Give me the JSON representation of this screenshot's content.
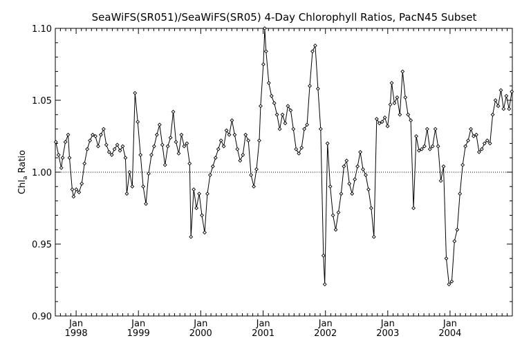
{
  "chart_data": {
    "type": "line",
    "title": "SeaWiFS(SR051)/SeaWiFS(SR05) 4-Day Chlorophyll Ratios, PacN45 Subset",
    "ylabel_main": "Chl",
    "ylabel_sub": "a",
    "ylabel_rest": " Ratio",
    "ylim": [
      0.9,
      1.1
    ],
    "yticks": [
      "0.90",
      "0.95",
      "1.00",
      "1.05",
      "1.10"
    ],
    "ytick_values": [
      0.9,
      0.95,
      1.0,
      1.05,
      1.1
    ],
    "reference_line": 1.0,
    "x_range": [
      "1997-09-01",
      "2004-12-31"
    ],
    "xticks": [
      {
        "month": "Jan",
        "year": "1998",
        "date": "1998-01-01"
      },
      {
        "month": "Jan",
        "year": "1999",
        "date": "1999-01-01"
      },
      {
        "month": "Jan",
        "year": "2000",
        "date": "2000-01-01"
      },
      {
        "month": "Jan",
        "year": "2001",
        "date": "2001-01-01"
      },
      {
        "month": "Jan",
        "year": "2002",
        "date": "2002-01-01"
      },
      {
        "month": "Jan",
        "year": "2003",
        "date": "2003-01-01"
      },
      {
        "month": "Jan",
        "year": "2004",
        "date": "2004-01-01"
      }
    ],
    "grid": false,
    "marker": "diamond",
    "series": [
      {
        "points": [
          [
            "1997-09-04",
            1.021
          ],
          [
            "1997-09-20",
            1.012
          ],
          [
            "1997-10-06",
            1.003
          ],
          [
            "1997-10-14",
            1.01
          ],
          [
            "1997-10-30",
            1.021
          ],
          [
            "1997-11-15",
            1.026
          ],
          [
            "1997-11-23",
            1.01
          ],
          [
            "1997-12-09",
            0.988
          ],
          [
            "1997-12-17",
            0.983
          ],
          [
            "1998-01-02",
            0.988
          ],
          [
            "1998-01-18",
            0.986
          ],
          [
            "1998-02-03",
            0.992
          ],
          [
            "1998-02-19",
            1.006
          ],
          [
            "1998-03-07",
            1.016
          ],
          [
            "1998-03-23",
            1.022
          ],
          [
            "1998-04-08",
            1.026
          ],
          [
            "1998-04-24",
            1.025
          ],
          [
            "1998-05-10",
            1.018
          ],
          [
            "1998-05-26",
            1.026
          ],
          [
            "1998-06-11",
            1.03
          ],
          [
            "1998-06-27",
            1.019
          ],
          [
            "1998-07-13",
            1.014
          ],
          [
            "1998-07-29",
            1.012
          ],
          [
            "1998-08-14",
            1.016
          ],
          [
            "1998-08-30",
            1.019
          ],
          [
            "1998-09-15",
            1.015
          ],
          [
            "1998-10-01",
            1.018
          ],
          [
            "1998-10-17",
            1.01
          ],
          [
            "1998-10-25",
            0.985
          ],
          [
            "1998-11-10",
            1.0
          ],
          [
            "1998-11-26",
            0.99
          ],
          [
            "1998-12-12",
            1.055
          ],
          [
            "1998-12-28",
            1.035
          ],
          [
            "1999-01-13",
            1.012
          ],
          [
            "1999-01-29",
            0.99
          ],
          [
            "1999-02-14",
            0.978
          ],
          [
            "1999-03-02",
            0.999
          ],
          [
            "1999-03-18",
            1.012
          ],
          [
            "1999-04-03",
            1.018
          ],
          [
            "1999-04-19",
            1.026
          ],
          [
            "1999-05-05",
            1.033
          ],
          [
            "1999-05-21",
            1.019
          ],
          [
            "1999-06-06",
            1.005
          ],
          [
            "1999-06-22",
            1.018
          ],
          [
            "1999-07-08",
            1.024
          ],
          [
            "1999-07-24",
            1.042
          ],
          [
            "1999-08-09",
            1.021
          ],
          [
            "1999-08-25",
            1.013
          ],
          [
            "1999-09-10",
            1.026
          ],
          [
            "1999-09-26",
            1.018
          ],
          [
            "1999-10-12",
            1.02
          ],
          [
            "1999-10-28",
            1.006
          ],
          [
            "1999-11-05",
            0.955
          ],
          [
            "1999-11-21",
            0.988
          ],
          [
            "1999-12-07",
            0.975
          ],
          [
            "1999-12-23",
            0.985
          ],
          [
            "2000-01-08",
            0.97
          ],
          [
            "2000-01-24",
            0.958
          ],
          [
            "2000-02-09",
            0.985
          ],
          [
            "2000-02-25",
            0.998
          ],
          [
            "2000-03-12",
            1.004
          ],
          [
            "2000-03-28",
            1.01
          ],
          [
            "2000-04-13",
            1.016
          ],
          [
            "2000-04-29",
            1.022
          ],
          [
            "2000-05-15",
            1.018
          ],
          [
            "2000-05-31",
            1.029
          ],
          [
            "2000-06-16",
            1.026
          ],
          [
            "2000-07-02",
            1.036
          ],
          [
            "2000-07-18",
            1.026
          ],
          [
            "2000-08-03",
            1.016
          ],
          [
            "2000-08-19",
            1.008
          ],
          [
            "2000-09-04",
            1.012
          ],
          [
            "2000-09-20",
            1.026
          ],
          [
            "2000-10-06",
            1.022
          ],
          [
            "2000-10-22",
            0.998
          ],
          [
            "2000-11-07",
            0.99
          ],
          [
            "2000-11-23",
            1.002
          ],
          [
            "2000-12-09",
            1.022
          ],
          [
            "2000-12-17",
            1.046
          ],
          [
            "2001-01-02",
            1.075
          ],
          [
            "2001-01-10",
            1.102
          ],
          [
            "2001-01-18",
            1.084
          ],
          [
            "2001-02-03",
            1.062
          ],
          [
            "2001-02-19",
            1.053
          ],
          [
            "2001-03-07",
            1.048
          ],
          [
            "2001-03-23",
            1.04
          ],
          [
            "2001-04-08",
            1.03
          ],
          [
            "2001-04-24",
            1.04
          ],
          [
            "2001-05-10",
            1.034
          ],
          [
            "2001-05-26",
            1.046
          ],
          [
            "2001-06-11",
            1.043
          ],
          [
            "2001-06-27",
            1.03
          ],
          [
            "2001-07-13",
            1.016
          ],
          [
            "2001-07-29",
            1.013
          ],
          [
            "2001-08-14",
            1.017
          ],
          [
            "2001-08-30",
            1.03
          ],
          [
            "2001-09-15",
            1.033
          ],
          [
            "2001-10-01",
            1.06
          ],
          [
            "2001-10-17",
            1.084
          ],
          [
            "2001-11-02",
            1.088
          ],
          [
            "2001-11-18",
            1.058
          ],
          [
            "2001-12-04",
            1.03
          ],
          [
            "2001-12-20",
            0.942
          ],
          [
            "2001-12-28",
            0.922
          ],
          [
            "2002-01-13",
            1.02
          ],
          [
            "2002-01-29",
            0.99
          ],
          [
            "2002-02-14",
            0.97
          ],
          [
            "2002-03-02",
            0.96
          ],
          [
            "2002-03-18",
            0.972
          ],
          [
            "2002-04-03",
            0.985
          ],
          [
            "2002-04-19",
            1.004
          ],
          [
            "2002-05-05",
            1.008
          ],
          [
            "2002-05-21",
            0.992
          ],
          [
            "2002-06-06",
            0.985
          ],
          [
            "2002-06-22",
            0.995
          ],
          [
            "2002-07-08",
            1.004
          ],
          [
            "2002-07-24",
            1.014
          ],
          [
            "2002-08-09",
            1.002
          ],
          [
            "2002-08-25",
            0.998
          ],
          [
            "2002-09-10",
            0.988
          ],
          [
            "2002-09-26",
            0.975
          ],
          [
            "2002-10-12",
            0.955
          ],
          [
            "2002-10-28",
            1.037
          ],
          [
            "2002-11-13",
            1.034
          ],
          [
            "2002-11-29",
            1.035
          ],
          [
            "2002-12-15",
            1.038
          ],
          [
            "2002-12-31",
            1.032
          ],
          [
            "2003-01-16",
            1.047
          ],
          [
            "2003-01-24",
            1.062
          ],
          [
            "2003-02-09",
            1.048
          ],
          [
            "2003-02-25",
            1.052
          ],
          [
            "2003-03-13",
            1.04
          ],
          [
            "2003-03-29",
            1.07
          ],
          [
            "2003-04-14",
            1.052
          ],
          [
            "2003-04-30",
            1.04
          ],
          [
            "2003-05-16",
            1.036
          ],
          [
            "2003-06-01",
            0.975
          ],
          [
            "2003-06-17",
            1.025
          ],
          [
            "2003-07-03",
            1.015
          ],
          [
            "2003-07-19",
            1.016
          ],
          [
            "2003-08-04",
            1.018
          ],
          [
            "2003-08-20",
            1.03
          ],
          [
            "2003-09-05",
            1.016
          ],
          [
            "2003-09-21",
            1.018
          ],
          [
            "2003-10-07",
            1.03
          ],
          [
            "2003-10-23",
            1.018
          ],
          [
            "2003-11-08",
            0.994
          ],
          [
            "2003-11-24",
            1.004
          ],
          [
            "2003-12-10",
            0.94
          ],
          [
            "2003-12-26",
            0.922
          ],
          [
            "2004-01-11",
            0.924
          ],
          [
            "2004-01-27",
            0.952
          ],
          [
            "2004-02-12",
            0.96
          ],
          [
            "2004-02-28",
            0.985
          ],
          [
            "2004-03-15",
            1.005
          ],
          [
            "2004-03-31",
            1.018
          ],
          [
            "2004-04-16",
            1.022
          ],
          [
            "2004-05-02",
            1.03
          ],
          [
            "2004-05-18",
            1.025
          ],
          [
            "2004-06-03",
            1.026
          ],
          [
            "2004-06-19",
            1.014
          ],
          [
            "2004-07-05",
            1.016
          ],
          [
            "2004-07-21",
            1.02
          ],
          [
            "2004-08-06",
            1.022
          ],
          [
            "2004-08-22",
            1.02
          ],
          [
            "2004-09-07",
            1.04
          ],
          [
            "2004-09-23",
            1.05
          ],
          [
            "2004-10-09",
            1.046
          ],
          [
            "2004-10-25",
            1.057
          ],
          [
            "2004-11-10",
            1.044
          ],
          [
            "2004-11-26",
            1.053
          ],
          [
            "2004-12-12",
            1.044
          ],
          [
            "2004-12-28",
            1.056
          ]
        ]
      }
    ]
  }
}
